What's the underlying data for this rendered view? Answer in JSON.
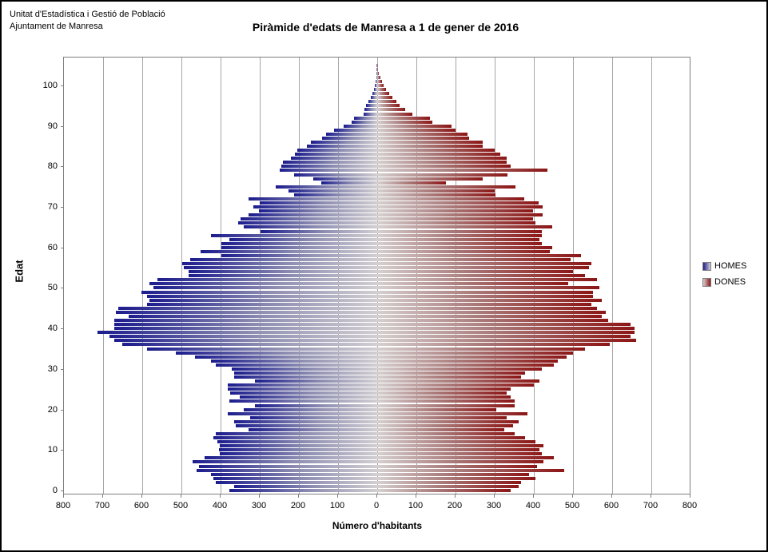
{
  "header": {
    "line1": "Unitat d'Estadística i Gestió de Població",
    "line2": "Ajuntament de Manresa"
  },
  "title": "Piràmide d'edats de Manresa a 1 de gener de 2016",
  "axes": {
    "x_label": "Número d'habitants",
    "y_label": "Edat",
    "x_tick_labels": [
      "800",
      "700",
      "600",
      "500",
      "400",
      "300",
      "200",
      "100",
      "0",
      "100",
      "200",
      "300",
      "400",
      "500",
      "600",
      "700",
      "800"
    ],
    "y_ticks": [
      0,
      10,
      20,
      30,
      40,
      50,
      60,
      70,
      80,
      90,
      100
    ]
  },
  "legend": [
    {
      "label": "HOMES"
    },
    {
      "label": "DONES"
    }
  ],
  "colors": {
    "homes_dark": "#1c1c8e",
    "homes_light": "#d2ced2",
    "dones_dark": "#8c1616",
    "dones_light": "#d6d0d0",
    "gridline": "#a6a6a6",
    "plot_border": "#7f7f7f"
  },
  "chart_data": {
    "type": "bar",
    "subtype": "population-pyramid",
    "title": "Piràmide d'edats de Manresa a 1 de gener de 2016",
    "xlabel": "Número d'habitants",
    "ylabel": "Edat",
    "xlim": [
      -800,
      800
    ],
    "ylim": [
      0,
      105
    ],
    "grid": true,
    "legend_position": "right",
    "age_min": 0,
    "age_max": 105,
    "series": [
      {
        "name": "HOMES",
        "side": "left",
        "values": [
          377,
          366,
          413,
          419,
          424,
          461,
          456,
          471,
          440,
          403,
          405,
          403,
          408,
          419,
          413,
          329,
          361,
          366,
          324,
          382,
          340,
          313,
          377,
          350,
          375,
          382,
          382,
          313,
          366,
          366,
          371,
          413,
          424,
          466,
          514,
          587,
          651,
          672,
          683,
          714,
          672,
          672,
          672,
          635,
          667,
          661,
          587,
          582,
          587,
          603,
          572,
          582,
          561,
          482,
          482,
          493,
          498,
          477,
          398,
          450,
          398,
          398,
          377,
          424,
          297,
          340,
          355,
          349,
          328,
          302,
          317,
          301,
          328,
          212,
          227,
          259,
          143,
          164,
          212,
          249,
          245,
          240,
          220,
          210,
          205,
          180,
          170,
          140,
          130,
          110,
          85,
          65,
          60,
          35,
          32,
          28,
          22,
          16,
          12,
          9,
          6,
          5,
          3,
          2,
          1,
          1
        ]
      },
      {
        "name": "DONES",
        "side": "right",
        "values": [
          340,
          362,
          367,
          404,
          388,
          478,
          409,
          425,
          451,
          420,
          415,
          425,
          404,
          378,
          351,
          325,
          346,
          362,
          330,
          383,
          304,
          351,
          351,
          340,
          330,
          341,
          399,
          415,
          367,
          378,
          420,
          451,
          462,
          483,
          499,
          530,
          594,
          662,
          647,
          657,
          657,
          647,
          589,
          573,
          583,
          562,
          546,
          573,
          552,
          552,
          567,
          488,
          562,
          530,
          499,
          541,
          546,
          494,
          520,
          441,
          446,
          420,
          415,
          420,
          420,
          446,
          405,
          397,
          423,
          397,
          423,
          412,
          375,
          302,
          301,
          354,
          175,
          270,
          333,
          434,
          340,
          330,
          330,
          315,
          300,
          270,
          270,
          235,
          230,
          200,
          190,
          140,
          135,
          90,
          72,
          58,
          48,
          38,
          30,
          22,
          16,
          12,
          8,
          5,
          3,
          2
        ]
      }
    ]
  }
}
